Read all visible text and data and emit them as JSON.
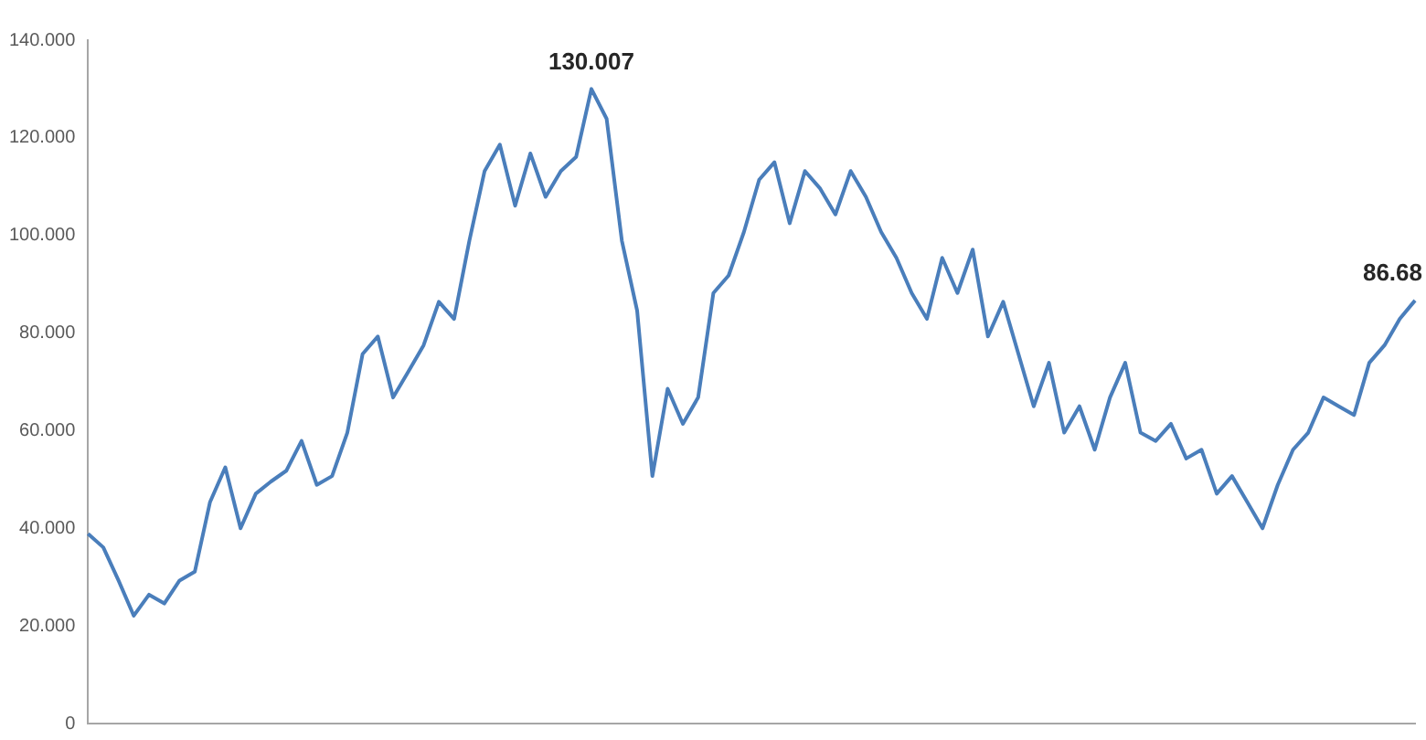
{
  "chart_data": {
    "type": "line",
    "categories": [
      null,
      null,
      null,
      null,
      null,
      null,
      null,
      null,
      null,
      null,
      null,
      null,
      null,
      null,
      null,
      null,
      null,
      null,
      null,
      null,
      null,
      null,
      null,
      null,
      null,
      null,
      null,
      null,
      null,
      null,
      null,
      null,
      null,
      null,
      null,
      null,
      null,
      null,
      null,
      null,
      null,
      null,
      null,
      null,
      null,
      null,
      null,
      null,
      null,
      null,
      null,
      null,
      null,
      null,
      null,
      null,
      null,
      null,
      null,
      null,
      null,
      null,
      null,
      null,
      null,
      null,
      null,
      null,
      null,
      null,
      null,
      null,
      null,
      null,
      null,
      null,
      null,
      null,
      null,
      null,
      null,
      null,
      null,
      null,
      null,
      null,
      null,
      null
    ],
    "series": [
      {
        "color": "#4a7ebb",
        "values": [
          38.9,
          36.1,
          29.3,
          22.1,
          26.4,
          24.6,
          29.3,
          31.1,
          45.4,
          52.5,
          40,
          47.1,
          49.6,
          51.8,
          57.9,
          48.9,
          50.7,
          59.6,
          75.7,
          79.3,
          66.8,
          72.1,
          77.5,
          86.4,
          82.9,
          98.9,
          113.2,
          118.6,
          106.1,
          116.8,
          107.9,
          113.2,
          116.1,
          130.007,
          123.9,
          98.9,
          84.6,
          50.7,
          68.6,
          61.4,
          66.8,
          88.2,
          91.8,
          100.7,
          111.4,
          115,
          102.5,
          113.2,
          109.6,
          104.3,
          113.2,
          107.9,
          100.7,
          95.4,
          88.2,
          82.9,
          95.4,
          88.2,
          97.1,
          79.3,
          86.4,
          75.7,
          65,
          73.9,
          59.6,
          65,
          56.1,
          66.8,
          73.9,
          59.6,
          57.9,
          61.4,
          54.3,
          56.1,
          47.1,
          50.7,
          45.4,
          40,
          48.9,
          56.1,
          59.6,
          66.8,
          65,
          63.2,
          73.9,
          77.5,
          82.9,
          86.68
        ],
        "value_labels": [
          null,
          null,
          null,
          null,
          null,
          null,
          null,
          null,
          null,
          null,
          null,
          null,
          null,
          null,
          null,
          null,
          null,
          null,
          null,
          null,
          null,
          null,
          null,
          null,
          null,
          null,
          null,
          null,
          null,
          null,
          null,
          null,
          null,
          "130.007",
          null,
          null,
          null,
          null,
          null,
          null,
          null,
          null,
          null,
          null,
          null,
          null,
          null,
          null,
          null,
          null,
          null,
          null,
          null,
          null,
          null,
          null,
          null,
          null,
          null,
          null,
          null,
          null,
          null,
          null,
          null,
          null,
          null,
          null,
          null,
          null,
          null,
          null,
          null,
          null,
          null,
          null,
          null,
          null,
          null,
          null,
          null,
          null,
          null,
          null,
          null,
          null,
          null,
          "86.68"
        ]
      }
    ],
    "ylim": [
      0,
      140
    ],
    "yticks": [
      0,
      {
        "value": 20,
        "label": "20.000"
      },
      {
        "value": 40,
        "label": "40.000"
      },
      {
        "value": 60,
        "label": "60.000"
      },
      {
        "value": 80,
        "label": "80.000"
      },
      {
        "value": 100,
        "label": "100.000"
      },
      {
        "value": 120,
        "label": "120.000"
      },
      {
        "value": 140,
        "label": "140.000"
      }
    ],
    "grid": false,
    "legend": false,
    "marker": "none",
    "line_style": "solid"
  }
}
